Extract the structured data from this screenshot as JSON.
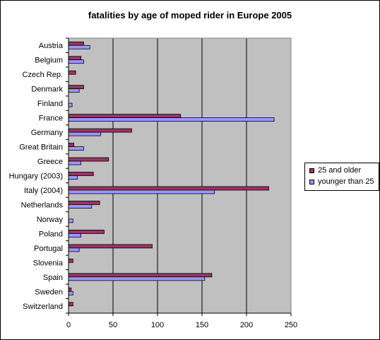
{
  "chart_data": {
    "type": "bar",
    "orientation": "horizontal",
    "title": "fatalities by age of moped rider in Europe 2005",
    "categories": [
      "Austria",
      "Belgium",
      "Czech Rep.",
      "Denmark",
      "Finland",
      "France",
      "Germany",
      "Great Britain",
      "Greece",
      "Hungary (2003)",
      "Italy (2004)",
      "Netherlands",
      "Norway",
      "Poland",
      "Portugal",
      "Slovenia",
      "Spain",
      "Sweden",
      "Switzerland"
    ],
    "series": [
      {
        "name": "25 and older",
        "color": "#993366",
        "values": [
          17,
          14,
          8,
          17,
          0,
          126,
          71,
          6,
          45,
          28,
          225,
          35,
          0,
          40,
          94,
          5,
          161,
          3,
          5
        ]
      },
      {
        "name": "younger than 25",
        "color": "#9999ff",
        "values": [
          24,
          17,
          0,
          12,
          4,
          231,
          36,
          17,
          14,
          10,
          164,
          26,
          5,
          14,
          12,
          0,
          153,
          5,
          0
        ]
      }
    ],
    "xlim": [
      0,
      250
    ],
    "xticks": [
      0,
      50,
      100,
      150,
      200,
      250
    ],
    "xtick_labels": [
      "0",
      "50",
      "100",
      "150",
      "200",
      "250"
    ],
    "xlabel": "",
    "ylabel": "",
    "grid": true,
    "plot_background": "#c0c0c0",
    "legend_position": "right"
  }
}
